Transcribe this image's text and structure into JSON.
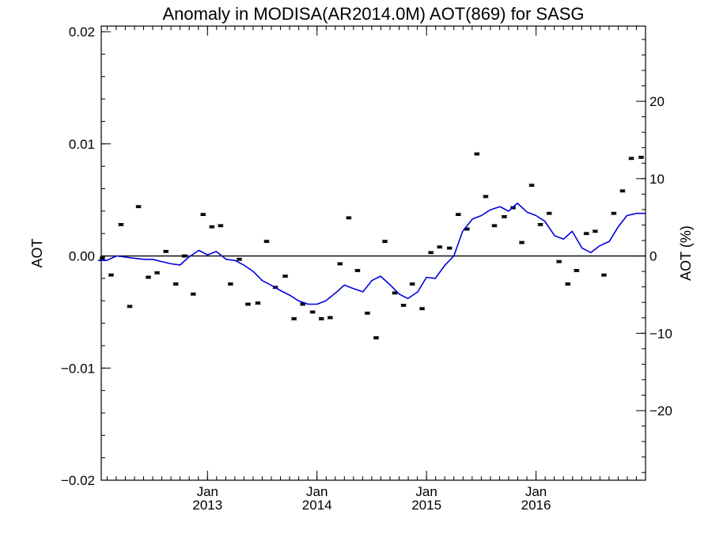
{
  "chart_data": {
    "type": "scatter",
    "title": "Anomaly in MODISA(AR2014.0M) AOT(869) for SASG",
    "ylabel": "AOT",
    "y2label": "AOT (%)",
    "xlabel": "",
    "x_ticks": [
      {
        "top": "Jan",
        "bottom": "2013",
        "x": 2013.0
      },
      {
        "top": "Jan",
        "bottom": "2014",
        "x": 2014.0
      },
      {
        "top": "Jan",
        "bottom": "2015",
        "x": 2015.0
      },
      {
        "top": "Jan",
        "bottom": "2016",
        "x": 2016.0
      }
    ],
    "xlim": [
      2012.03,
      2017.0
    ],
    "ylim": [
      -0.02,
      0.0205
    ],
    "y_ticks": [
      {
        "value": 0.02,
        "label": "0.02"
      },
      {
        "value": 0.01,
        "label": "0.01"
      },
      {
        "value": 0.0,
        "label": "0.00"
      },
      {
        "value": -0.01,
        "label": "−0.01"
      },
      {
        "value": -0.02,
        "label": "−0.02"
      }
    ],
    "y2_ticks": [
      {
        "value": 20,
        "label": "20"
      },
      {
        "value": 10,
        "label": "10"
      },
      {
        "value": 0,
        "label": "0"
      },
      {
        "value": -10,
        "label": "−10"
      },
      {
        "value": -20,
        "label": "−20"
      }
    ],
    "y2_per_y1": 1450,
    "zero_line": true,
    "grid": false,
    "colors": {
      "points": "#000000",
      "line": "#0000dd",
      "axes": "#000000"
    },
    "series": [
      {
        "style": "points-with-error-bars",
        "error": 0.0001,
        "x": [
          2012.04,
          2012.12,
          2012.21,
          2012.29,
          2012.37,
          2012.46,
          2012.54,
          2012.62,
          2012.71,
          2012.79,
          2012.87,
          2012.96,
          2013.04,
          2013.12,
          2013.21,
          2013.29,
          2013.37,
          2013.46,
          2013.54,
          2013.62,
          2013.71,
          2013.79,
          2013.87,
          2013.96,
          2014.04,
          2014.12,
          2014.21,
          2014.29,
          2014.37,
          2014.46,
          2014.54,
          2014.62,
          2014.71,
          2014.79,
          2014.87,
          2014.96,
          2015.04,
          2015.12,
          2015.21,
          2015.29,
          2015.37,
          2015.46,
          2015.54,
          2015.62,
          2015.71,
          2015.79,
          2015.87,
          2015.96,
          2016.04,
          2016.12,
          2016.21,
          2016.29,
          2016.37,
          2016.46,
          2016.54,
          2016.62,
          2016.71,
          2016.79,
          2016.87,
          2016.96
        ],
        "y": [
          -0.0002,
          -0.0017,
          0.0028,
          -0.0045,
          0.0044,
          -0.0019,
          -0.0015,
          0.0004,
          -0.0025,
          0.0,
          -0.0034,
          0.0037,
          0.0026,
          0.0027,
          -0.0025,
          -0.0003,
          -0.0043,
          -0.0042,
          0.0013,
          -0.0028,
          -0.0018,
          -0.0056,
          -0.0043,
          -0.005,
          -0.0056,
          -0.0055,
          -0.0007,
          0.0034,
          -0.0013,
          -0.0051,
          -0.0073,
          0.0013,
          -0.0033,
          -0.0044,
          -0.0025,
          -0.0047,
          0.0003,
          0.0008,
          0.0007,
          0.0037,
          0.0024,
          0.0091,
          0.0053,
          0.0027,
          0.0035,
          0.0043,
          0.0012,
          0.0063,
          0.0028,
          0.0038,
          -0.0005,
          -0.0025,
          -0.0013,
          0.002,
          0.0022,
          -0.0017,
          0.0038,
          0.0058,
          0.0087,
          0.0088
        ]
      },
      {
        "style": "line",
        "x": [
          2012.0,
          2012.08,
          2012.17,
          2012.25,
          2012.33,
          2012.42,
          2012.5,
          2012.58,
          2012.67,
          2012.75,
          2012.83,
          2012.92,
          2013.0,
          2013.08,
          2013.17,
          2013.25,
          2013.33,
          2013.42,
          2013.5,
          2013.58,
          2013.67,
          2013.75,
          2013.83,
          2013.92,
          2014.0,
          2014.08,
          2014.17,
          2014.25,
          2014.33,
          2014.42,
          2014.5,
          2014.58,
          2014.67,
          2014.75,
          2014.83,
          2014.92,
          2015.0,
          2015.08,
          2015.17,
          2015.25,
          2015.33,
          2015.42,
          2015.5,
          2015.58,
          2015.67,
          2015.75,
          2015.83,
          2015.92,
          2016.0,
          2016.08,
          2016.17,
          2016.25,
          2016.33,
          2016.42,
          2016.5,
          2016.58,
          2016.67,
          2016.75,
          2016.83,
          2016.92,
          2017.0
        ],
        "y": [
          -0.0004,
          -0.0004,
          0.0,
          -0.0001,
          -0.0002,
          -0.0003,
          -0.0003,
          -0.0005,
          -0.0007,
          -0.0008,
          -0.0001,
          0.0005,
          0.0001,
          0.0004,
          -0.0003,
          -0.0004,
          -0.0008,
          -0.0014,
          -0.0022,
          -0.0026,
          -0.0031,
          -0.0035,
          -0.004,
          -0.0043,
          -0.0043,
          -0.004,
          -0.0033,
          -0.0026,
          -0.0029,
          -0.0032,
          -0.0022,
          -0.0018,
          -0.0026,
          -0.0034,
          -0.0038,
          -0.0032,
          -0.0019,
          -0.002,
          -0.0008,
          0.0,
          0.0022,
          0.0033,
          0.0036,
          0.0041,
          0.0044,
          0.004,
          0.0047,
          0.0039,
          0.0036,
          0.0031,
          0.0018,
          0.0015,
          0.0022,
          0.0007,
          0.0003,
          0.0009,
          0.0013,
          0.0026,
          0.0036,
          0.0038,
          0.0038
        ]
      }
    ]
  }
}
